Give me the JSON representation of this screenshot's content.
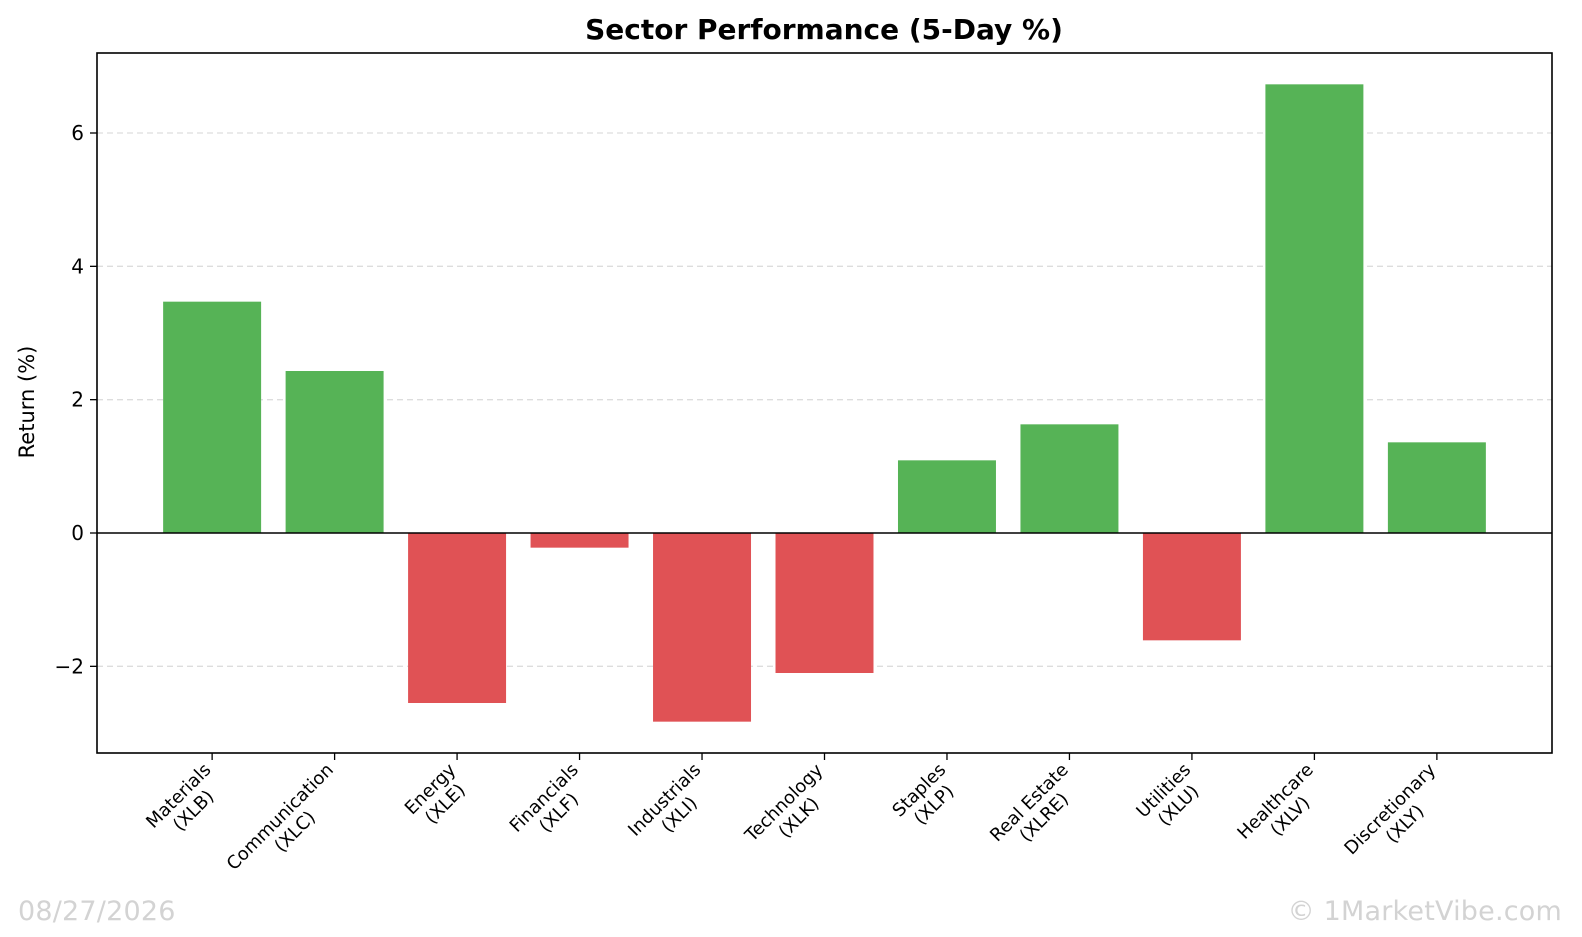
{
  "chart_data": {
    "type": "bar",
    "title": "Sector Performance (5-Day %)",
    "xlabel": "",
    "ylabel": "Return (%)",
    "categories": [
      "Materials\n(XLB)",
      "Communication\n(XLC)",
      "Energy\n(XLE)",
      "Financials\n(XLF)",
      "Industrials\n(XLI)",
      "Technology\n(XLK)",
      "Staples\n(XLP)",
      "Real Estate\n(XLRE)",
      "Utilities\n(XLU)",
      "Healthcare\n(XLV)",
      "Discretionary\n(XLY)"
    ],
    "values": [
      3.47,
      2.43,
      -2.55,
      -0.22,
      -2.83,
      -2.1,
      1.09,
      1.63,
      -1.61,
      6.73,
      1.36
    ],
    "ylim": [
      -3.3,
      7.2
    ],
    "yticks": [
      -2,
      0,
      2,
      4,
      6
    ],
    "ytick_labels": [
      "−2",
      "0",
      "2",
      "4",
      "6"
    ],
    "grid": true,
    "colors": {
      "positive": "#56b356",
      "negative": "#e05255",
      "grid": "#dddddd",
      "axis": "#000000"
    }
  },
  "footer": {
    "date": "08/27/2026",
    "copyright": "© 1MarketVibe.com"
  }
}
